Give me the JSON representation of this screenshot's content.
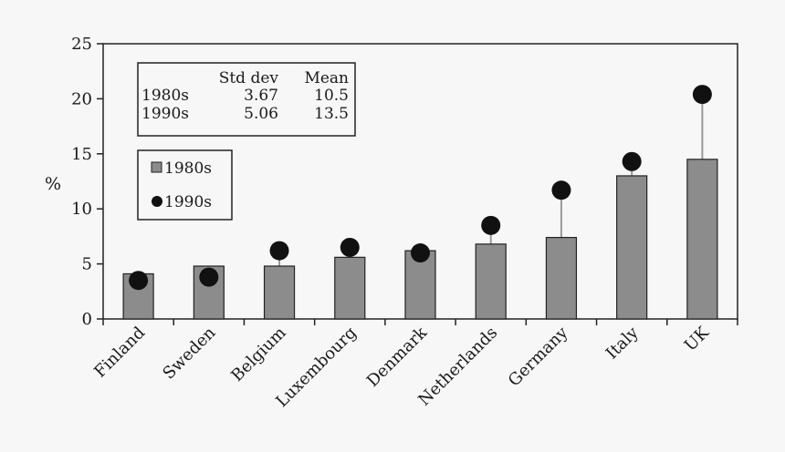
{
  "chart_data": {
    "type": "bar",
    "ylabel": "%",
    "ylim": [
      0,
      25
    ],
    "yticks": [
      0,
      5,
      10,
      15,
      20,
      25
    ],
    "categories": [
      "Finland",
      "Sweden",
      "Belgium",
      "Luxembourg",
      "Denmark",
      "Netherlands",
      "Germany",
      "Italy",
      "UK"
    ],
    "series": [
      {
        "name": "1980s",
        "mark": "bar",
        "color": "#8c8c8c",
        "values": [
          4.1,
          4.8,
          4.8,
          5.6,
          6.2,
          6.8,
          7.4,
          13.0,
          14.5
        ]
      },
      {
        "name": "1990s",
        "mark": "dot",
        "color": "#111111",
        "values": [
          3.5,
          3.8,
          6.2,
          6.5,
          6.0,
          8.5,
          11.7,
          14.3,
          20.4
        ]
      }
    ],
    "stats_table": {
      "headers": [
        "",
        "Std dev",
        "Mean"
      ],
      "rows": [
        [
          "1980s",
          "3.67",
          "10.5"
        ],
        [
          "1990s",
          "5.06",
          "13.5"
        ]
      ]
    },
    "legend": {
      "position": "top-left"
    },
    "grid": false
  }
}
